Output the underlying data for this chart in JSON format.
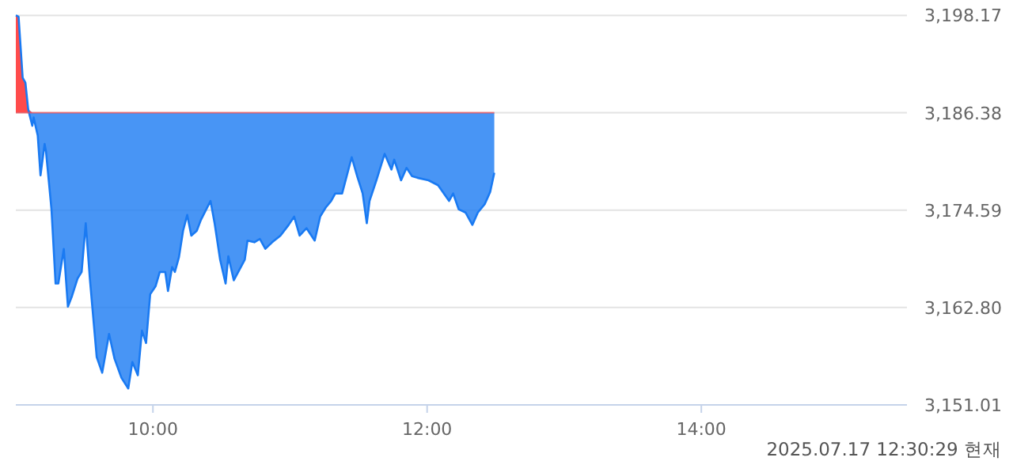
{
  "chart_data": {
    "type": "line",
    "x": [
      9.0,
      9.02,
      9.05,
      9.07,
      9.09,
      9.12,
      9.13,
      9.16,
      9.18,
      9.21,
      9.22,
      9.26,
      9.29,
      9.31,
      9.35,
      9.38,
      9.41,
      9.45,
      9.48,
      9.51,
      9.54,
      9.59,
      9.63,
      9.68,
      9.72,
      9.77,
      9.82,
      9.85,
      9.89,
      9.92,
      9.95,
      9.98,
      10.02,
      10.05,
      10.09,
      10.11,
      10.14,
      10.16,
      10.19,
      10.22,
      10.25,
      10.28,
      10.32,
      10.35,
      10.42,
      10.45,
      10.49,
      10.53,
      10.55,
      10.59,
      10.67,
      10.69,
      10.74,
      10.78,
      10.82,
      10.87,
      10.93,
      10.99,
      11.03,
      11.07,
      11.12,
      11.18,
      11.22,
      11.26,
      11.3,
      11.33,
      11.38,
      11.45,
      11.49,
      11.53,
      11.56,
      11.58,
      11.63,
      11.69,
      11.74,
      11.76,
      11.81,
      11.85,
      11.89,
      11.93,
      12.01,
      12.08,
      12.16,
      12.19,
      12.23,
      12.28,
      12.33,
      12.37,
      12.42,
      12.46,
      12.49
    ],
    "series": [
      {
        "color": "#1a7af2",
        "lower": [
          3186.38,
          3186.38,
          3186.38,
          3186.38,
          3186.38,
          3184.8,
          3185.8,
          3183.6,
          3178.8,
          3182.6,
          3181.7,
          3174.7,
          3165.7,
          3165.7,
          3169.9,
          3162.9,
          3164.2,
          3166.3,
          3167.1,
          3173.0,
          3166.3,
          3156.8,
          3154.9,
          3159.6,
          3156.6,
          3154.3,
          3153.0,
          3156.2,
          3154.6,
          3160.0,
          3158.5,
          3164.4,
          3165.4,
          3167.1,
          3167.1,
          3164.8,
          3167.7,
          3167.1,
          3168.9,
          3172.1,
          3174.0,
          3171.5,
          3172.1,
          3173.4,
          3175.7,
          3173.0,
          3168.6,
          3165.7,
          3169.0,
          3166.1,
          3168.6,
          3170.9,
          3170.7,
          3171.1,
          3169.9,
          3170.7,
          3171.5,
          3172.8,
          3173.8,
          3171.5,
          3172.4,
          3170.9,
          3173.8,
          3174.9,
          3175.7,
          3176.6,
          3176.6,
          3181.0,
          3178.7,
          3176.6,
          3173.0,
          3175.7,
          3178.2,
          3181.4,
          3179.5,
          3180.7,
          3178.2,
          3179.7,
          3178.7,
          3178.5,
          3178.2,
          3177.6,
          3175.7,
          3176.6,
          3174.7,
          3174.3,
          3172.8,
          3174.3,
          3175.3,
          3176.8,
          3179.1
        ],
        "upper": [
          3198.17,
          3198.0,
          3190.6,
          3190.0,
          3186.8,
          3186.38,
          3186.38,
          3186.38,
          3186.38,
          3186.38,
          3186.38,
          3186.38,
          3186.38,
          3186.38,
          3186.38,
          3186.38,
          3186.38,
          3186.38,
          3186.38,
          3186.38,
          3186.38,
          3186.38,
          3186.38,
          3186.38,
          3186.38,
          3186.38,
          3186.38,
          3186.38,
          3186.38,
          3186.38,
          3186.38,
          3186.38,
          3186.38,
          3186.38,
          3186.38,
          3186.38,
          3186.38,
          3186.38,
          3186.38,
          3186.38,
          3186.38,
          3186.38,
          3186.38,
          3186.38,
          3186.38,
          3186.38,
          3186.38,
          3186.38,
          3186.38,
          3186.38,
          3186.38,
          3186.38,
          3186.38,
          3186.38,
          3186.38,
          3186.38,
          3186.38,
          3186.38,
          3186.38,
          3186.38,
          3186.38,
          3186.38,
          3186.38,
          3186.38,
          3186.38,
          3186.38,
          3186.38,
          3186.38,
          3186.38,
          3186.38,
          3186.38,
          3186.38,
          3186.38,
          3186.38,
          3186.38,
          3186.38,
          3186.38,
          3186.38,
          3186.38,
          3186.38,
          3186.38,
          3186.38,
          3186.38,
          3186.38,
          3186.38,
          3186.38,
          3186.38,
          3186.38,
          3186.38,
          3186.38,
          3186.38
        ],
        "values": [
          3198.17,
          3198.0,
          3190.6,
          3190.0,
          3186.8,
          3184.8,
          3185.8,
          3183.6,
          3178.8,
          3182.6,
          3181.7,
          3174.7,
          3165.7,
          3165.7,
          3169.9,
          3162.9,
          3164.2,
          3166.3,
          3167.1,
          3173.0,
          3166.3,
          3156.8,
          3154.9,
          3159.6,
          3156.6,
          3154.3,
          3153.0,
          3156.2,
          3154.6,
          3160.0,
          3158.5,
          3164.4,
          3165.4,
          3167.1,
          3167.1,
          3164.8,
          3167.7,
          3167.1,
          3168.9,
          3172.1,
          3174.0,
          3171.5,
          3172.1,
          3173.4,
          3175.7,
          3173.0,
          3168.6,
          3165.7,
          3169.0,
          3166.1,
          3168.6,
          3170.9,
          3170.7,
          3171.1,
          3169.9,
          3170.7,
          3171.5,
          3172.8,
          3173.8,
          3171.5,
          3172.4,
          3170.9,
          3173.8,
          3174.9,
          3175.7,
          3176.6,
          3176.6,
          3181.0,
          3178.7,
          3176.6,
          3173.0,
          3175.7,
          3178.2,
          3181.4,
          3179.5,
          3180.7,
          3178.2,
          3179.7,
          3178.7,
          3178.5,
          3178.2,
          3177.6,
          3175.7,
          3176.6,
          3174.7,
          3174.3,
          3172.8,
          3174.3,
          3175.3,
          3176.8,
          3179.1
        ]
      }
    ],
    "ref_lines": [
      {
        "axis": "y",
        "value": 3186.38,
        "color": "#ff4b4b"
      }
    ],
    "xlim": [
      9,
      15.5
    ],
    "xticks": [
      {
        "value": 10,
        "label": "10:00"
      },
      {
        "value": 12,
        "label": "12:00"
      },
      {
        "value": 14,
        "label": "14:00"
      }
    ],
    "ylim": [
      3151.01,
      3198.17
    ],
    "yticks": [
      {
        "value": 3151.01,
        "label": "3,151.01"
      },
      {
        "value": 3162.8,
        "label": "3,162.80"
      },
      {
        "value": 3174.59,
        "label": "3,174.59"
      },
      {
        "value": 3186.38,
        "label": "3,186.38"
      },
      {
        "value": 3198.17,
        "label": "3,198.17"
      }
    ],
    "grid": "y",
    "annotations": [
      "2025.07.17 12:30:29 현재"
    ]
  }
}
